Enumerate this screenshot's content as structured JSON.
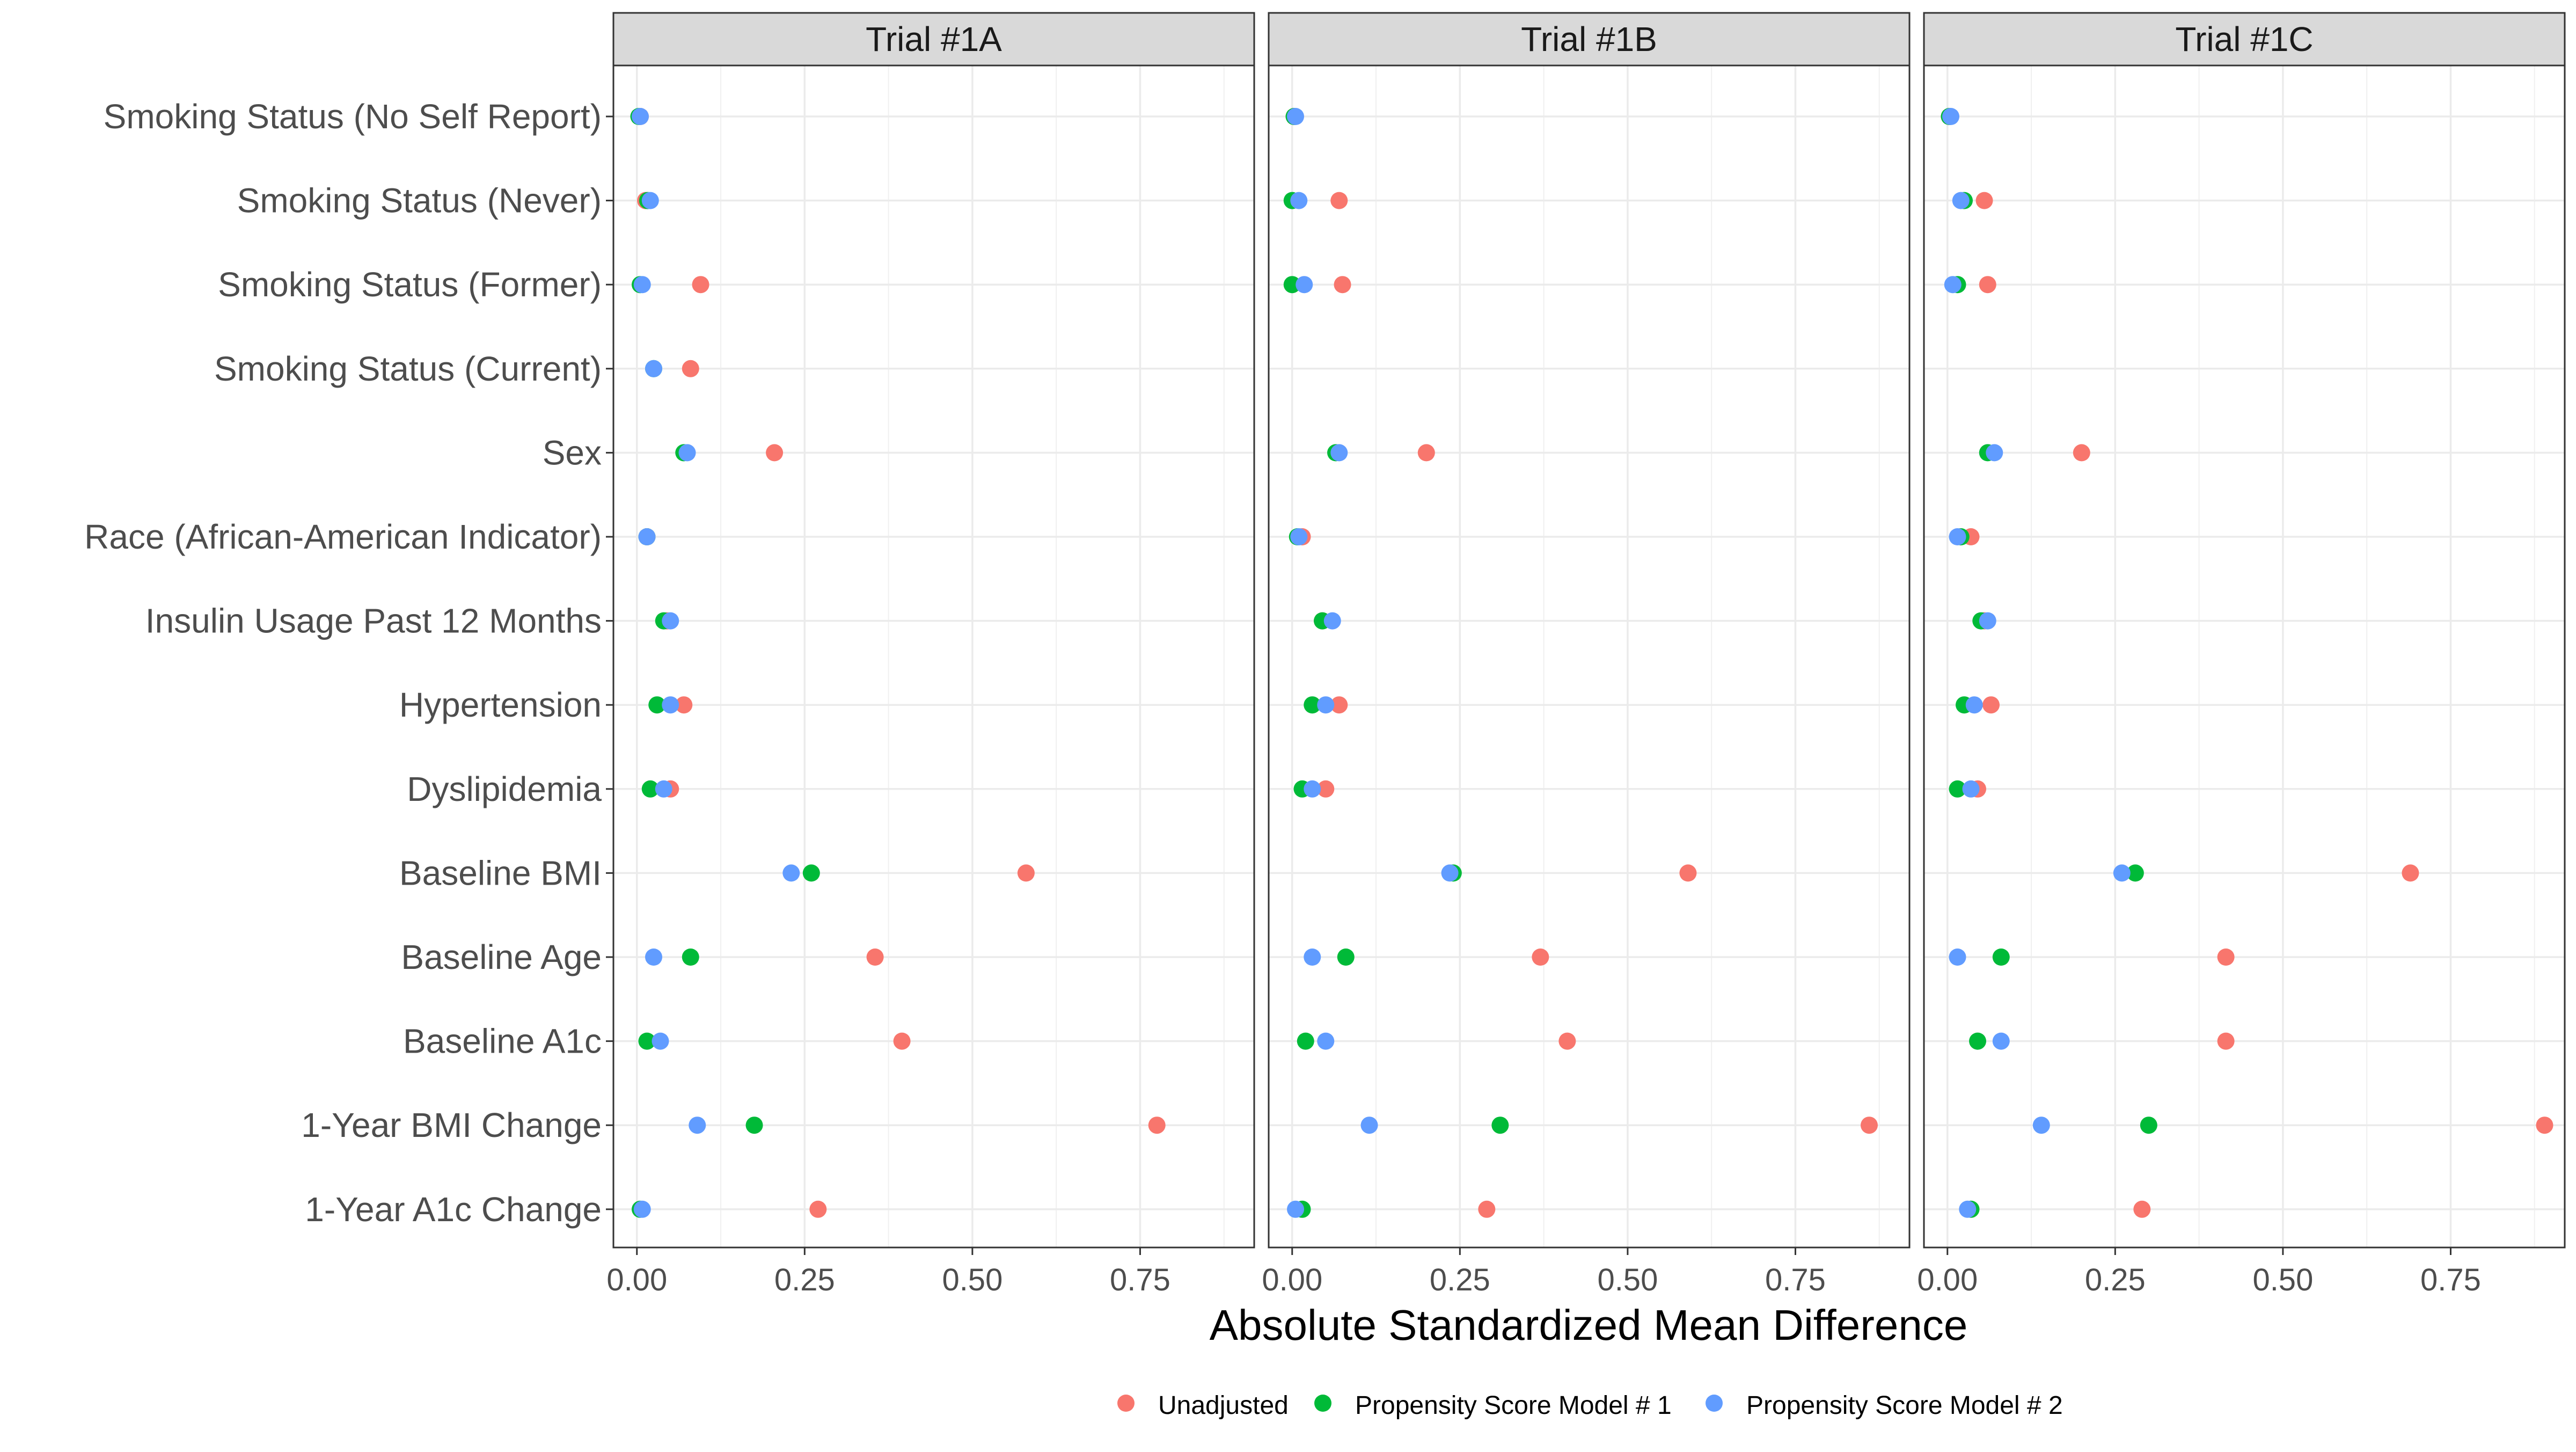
{
  "chart_data": {
    "type": "scatter",
    "xlabel": "Absolute Standardized Mean Difference",
    "ylabel": "",
    "xlim": [
      -0.035,
      0.92
    ],
    "x_ticks": [
      0,
      0.25,
      0.5,
      0.75
    ],
    "x_tick_labels": [
      "0.00",
      "0.25",
      "0.50",
      "0.75"
    ],
    "grid": true,
    "legend_position": "bottom",
    "categories": [
      "Smoking Status (No Self Report)",
      "Smoking Status (Never)",
      "Smoking Status (Former)",
      "Smoking Status (Current)",
      "Sex",
      "Race (African-American Indicator)",
      "Insulin Usage Past 12 Months",
      "Hypertension",
      "Dyslipidemia",
      "Baseline BMI",
      "Baseline Age",
      "Baseline A1c",
      "1-Year BMI Change",
      "1-Year A1c Change"
    ],
    "series_meta": [
      {
        "name": "Unadjusted",
        "color": "#F8766D"
      },
      {
        "name": "Propensity Score Model # 1",
        "color": "#00BA38"
      },
      {
        "name": "Propensity Score Model # 2",
        "color": "#619CFF"
      }
    ],
    "panels": [
      {
        "title": "Trial #1A",
        "series": [
          {
            "name": "Unadjusted",
            "values": [
              0.005,
              0.013,
              0.095,
              0.08,
              0.205,
              0.015,
              0.045,
              0.07,
              0.05,
              0.58,
              0.355,
              0.395,
              0.775,
              0.27
            ]
          },
          {
            "name": "Propensity Score Model # 1",
            "values": [
              0.003,
              0.016,
              0.005,
              0.025,
              0.07,
              0.015,
              0.04,
              0.03,
              0.02,
              0.26,
              0.08,
              0.015,
              0.175,
              0.005
            ]
          },
          {
            "name": "Propensity Score Model # 2",
            "values": [
              0.005,
              0.02,
              0.008,
              0.025,
              0.075,
              0.015,
              0.05,
              0.05,
              0.04,
              0.23,
              0.025,
              0.035,
              0.09,
              0.008
            ]
          }
        ]
      },
      {
        "title": "Trial #1B",
        "series": [
          {
            "name": "Unadjusted",
            "values": [
              0.003,
              0.07,
              0.075,
              null,
              0.2,
              0.015,
              0.045,
              0.07,
              0.05,
              0.59,
              0.37,
              0.41,
              0.86,
              0.29
            ]
          },
          {
            "name": "Propensity Score Model # 1",
            "values": [
              0.003,
              0.0,
              0.0,
              null,
              0.065,
              0.008,
              0.045,
              0.03,
              0.015,
              0.24,
              0.08,
              0.02,
              0.31,
              0.015
            ]
          },
          {
            "name": "Propensity Score Model # 2",
            "values": [
              0.005,
              0.01,
              0.018,
              null,
              0.07,
              0.01,
              0.06,
              0.05,
              0.03,
              0.235,
              0.03,
              0.05,
              0.115,
              0.005
            ]
          }
        ]
      },
      {
        "title": "Trial #1C",
        "series": [
          {
            "name": "Unadjusted",
            "values": [
              0.003,
              0.055,
              0.06,
              null,
              0.2,
              0.035,
              0.055,
              0.065,
              0.045,
              0.69,
              0.415,
              0.415,
              0.89,
              0.29
            ]
          },
          {
            "name": "Propensity Score Model # 1",
            "values": [
              0.003,
              0.025,
              0.015,
              null,
              0.06,
              0.02,
              0.05,
              0.025,
              0.015,
              0.28,
              0.08,
              0.045,
              0.3,
              0.035
            ]
          },
          {
            "name": "Propensity Score Model # 2",
            "values": [
              0.005,
              0.02,
              0.008,
              null,
              0.07,
              0.015,
              0.06,
              0.04,
              0.035,
              0.26,
              0.015,
              0.08,
              0.14,
              0.03
            ]
          }
        ]
      }
    ]
  }
}
